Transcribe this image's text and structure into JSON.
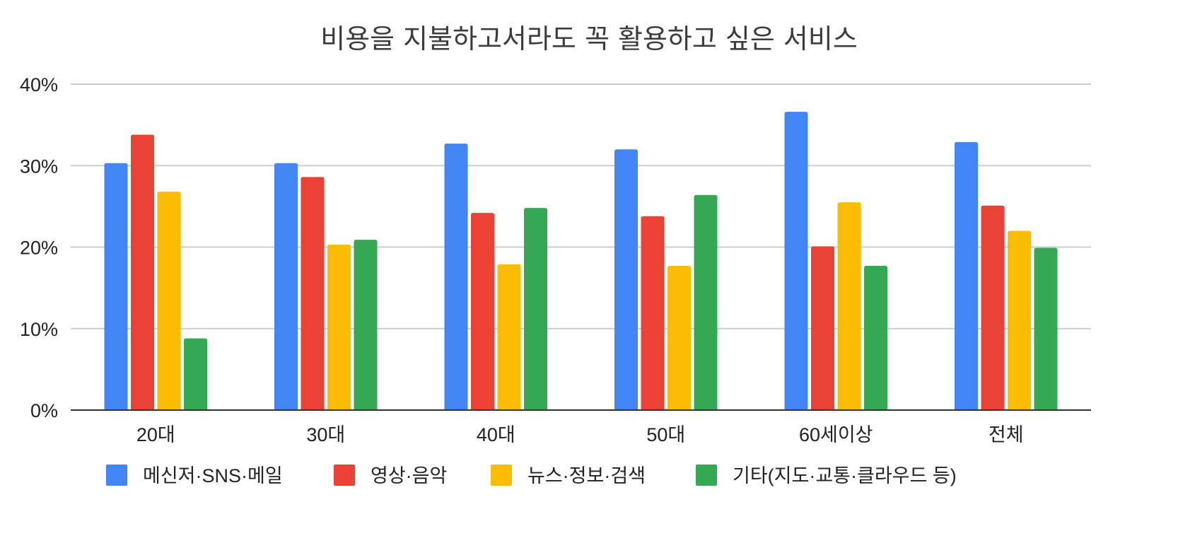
{
  "chart_data": {
    "type": "bar",
    "title": "비용을 지불하고서라도 꼭 활용하고 싶은 서비스",
    "categories": [
      "20대",
      "30대",
      "40대",
      "50대",
      "60세이상",
      "전체"
    ],
    "series": [
      {
        "name": "메신저·SNS·메일",
        "color": "#4285f4",
        "values": [
          30.3,
          30.3,
          32.7,
          32.0,
          36.6,
          32.9
        ]
      },
      {
        "name": "영상·음악",
        "color": "#ea4335",
        "values": [
          33.8,
          28.6,
          24.2,
          23.8,
          20.1,
          25.1
        ]
      },
      {
        "name": "뉴스·정보·검색",
        "color": "#fbbc04",
        "values": [
          26.8,
          20.3,
          17.9,
          17.7,
          25.5,
          22.0
        ]
      },
      {
        "name": "기타(지도·교통·클라우드 등)",
        "color": "#34a853",
        "values": [
          8.8,
          20.9,
          24.8,
          26.4,
          17.7,
          19.9
        ]
      }
    ],
    "y_ticks": [
      "0%",
      "10%",
      "20%",
      "30%",
      "40%"
    ],
    "ylim": [
      0,
      40
    ],
    "grid": true,
    "legend_position": "bottom"
  }
}
